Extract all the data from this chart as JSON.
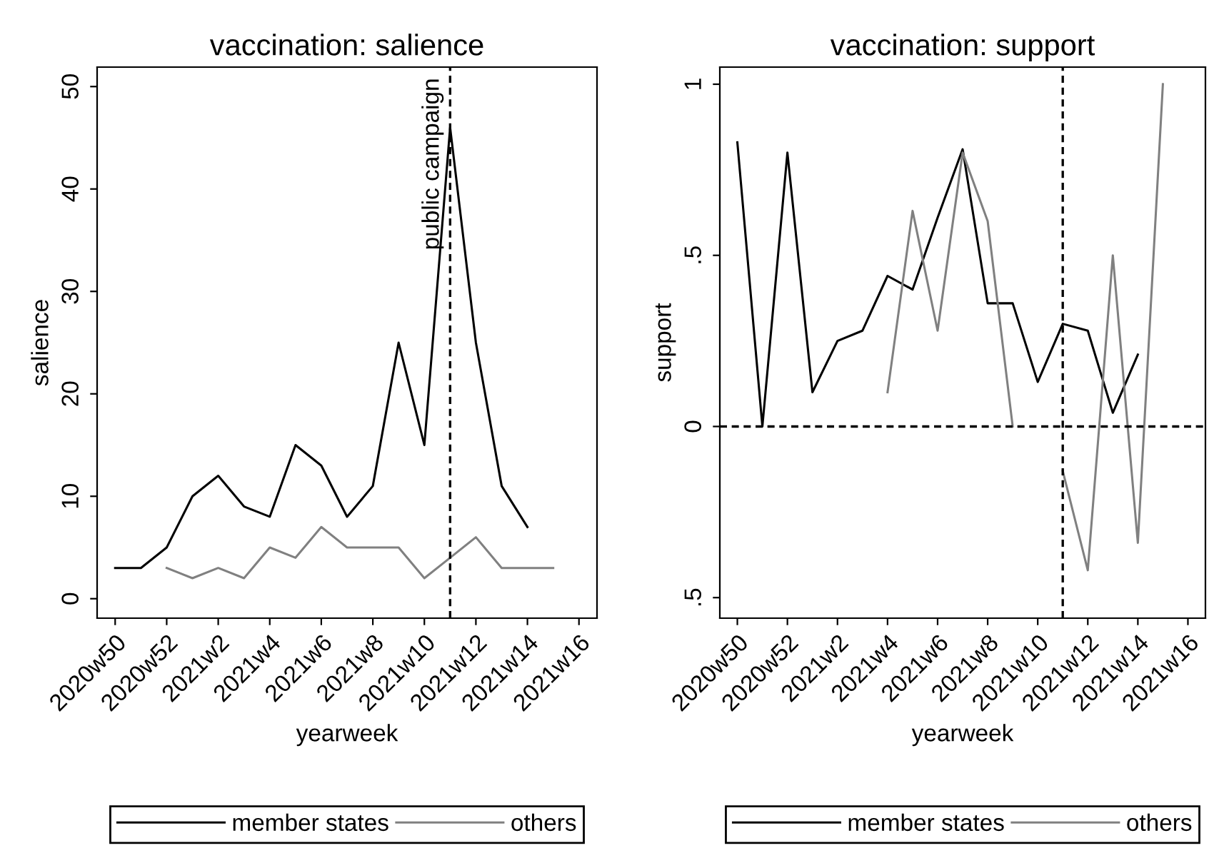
{
  "chart_data": [
    {
      "type": "line",
      "title": "vaccination: salience",
      "xlabel": "yearweek",
      "ylabel": "salience",
      "categories": [
        "2020w50",
        null,
        "2020w52",
        null,
        "2021w2",
        null,
        "2021w4",
        null,
        "2021w6",
        null,
        "2021w8",
        null,
        "2021w10",
        null,
        "2021w12",
        null,
        "2021w14",
        null,
        "2021w16"
      ],
      "series": [
        {
          "name": "member states",
          "color": "#000000",
          "values": [
            3,
            3,
            5,
            10,
            12,
            9,
            8,
            15,
            13,
            8,
            11,
            25,
            15,
            46,
            25,
            11,
            7,
            null,
            null
          ]
        },
        {
          "name": "others",
          "color": "#808080",
          "values": [
            null,
            null,
            3,
            2,
            3,
            2,
            5,
            4,
            7,
            5,
            5,
            5,
            2,
            4,
            6,
            3,
            3,
            3,
            null
          ]
        }
      ],
      "ylim": [
        -1.9,
        51.9
      ],
      "yticks": [
        0,
        10,
        20,
        30,
        40,
        50
      ],
      "annotations": [
        "public campaign"
      ],
      "legend": "bottom"
    },
    {
      "type": "line",
      "title": "vaccination: support",
      "xlabel": "yearweek",
      "ylabel": "support",
      "categories": [
        "2020w50",
        null,
        "2020w52",
        null,
        "2021w2",
        null,
        "2021w4",
        null,
        "2021w6",
        null,
        "2021w8",
        null,
        "2021w10",
        null,
        "2021w12",
        null,
        "2021w14",
        null,
        "2021w16"
      ],
      "series": [
        {
          "name": "member states",
          "color": "#000000",
          "values": [
            0.83,
            0,
            0.8,
            0.1,
            0.25,
            0.28,
            0.44,
            0.4,
            0.61,
            0.81,
            0.36,
            0.36,
            0.13,
            0.3,
            0.28,
            0.04,
            0.21,
            null,
            null
          ]
        },
        {
          "name": "others",
          "color": "#808080",
          "values": [
            null,
            null,
            null,
            null,
            null,
            null,
            0.1,
            0.63,
            0.28,
            0.8,
            0.6,
            0,
            null,
            -0.13,
            -0.42,
            0.5,
            -0.34,
            1,
            null
          ]
        }
      ],
      "ylim": [
        -0.56,
        1.05
      ],
      "yticks": [
        {
          "value": -0.5,
          "label": ".5"
        },
        0,
        {
          "value": 0.5,
          "label": ".5"
        },
        1
      ],
      "ref_lines": [
        {
          "axis": "y",
          "value": 0,
          "color": "#000000",
          "line_style": "dashed"
        }
      ],
      "legend": "bottom"
    }
  ]
}
